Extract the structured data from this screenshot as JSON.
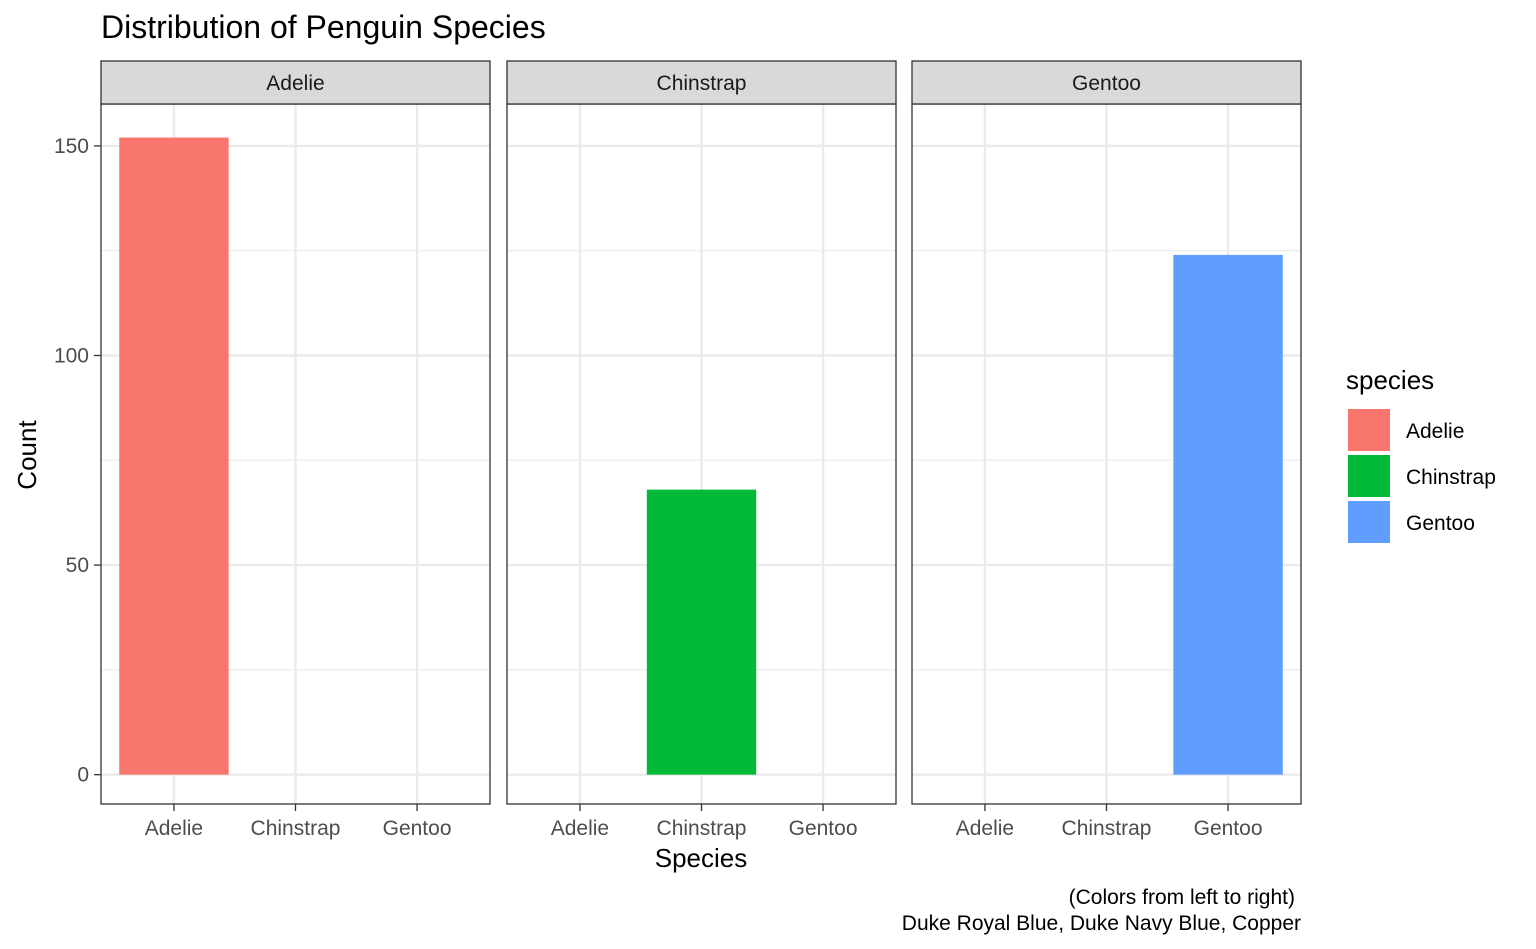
{
  "chart_data": {
    "type": "bar",
    "title": "Distribution of Penguin Species",
    "xlabel": "Species",
    "ylabel": "Count",
    "categories": [
      "Adelie",
      "Chinstrap",
      "Gentoo"
    ],
    "facets": [
      "Adelie",
      "Chinstrap",
      "Gentoo"
    ],
    "values": [
      152,
      68,
      124
    ],
    "ylim": [
      -7,
      160
    ],
    "yticks": [
      0,
      50,
      100,
      150
    ],
    "grid": true,
    "legend": {
      "title": "species",
      "position": "right",
      "entries": [
        "Adelie",
        "Chinstrap",
        "Gentoo"
      ]
    },
    "colors": [
      "#F8766D",
      "#00BA38",
      "#619CFF"
    ],
    "caption": [
      "(Colors from left to right)",
      "Duke Royal Blue, Duke Navy Blue, Copper"
    ]
  }
}
